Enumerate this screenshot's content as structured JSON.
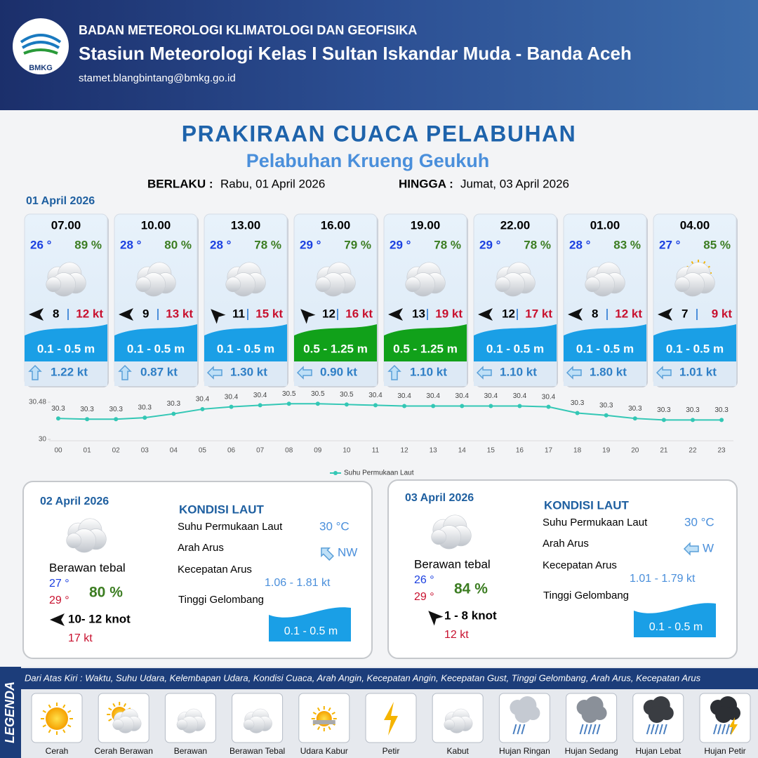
{
  "header": {
    "org": "BADAN METEOROLOGI KLIMATOLOGI DAN GEOFISIKA",
    "station": "Stasiun Meteorologi Kelas I Sultan Iskandar Muda - Banda Aceh",
    "email": "stamet.blangbintang@bmkg.go.id",
    "logo": "BMKG"
  },
  "title": "PRAKIRAAN CUACA PELABUHAN",
  "subtitle": "Pelabuhan Krueng Geukuh",
  "validity": {
    "from_label": "BERLAKU :",
    "from": "Rabu, 01 April 2026",
    "to_label": "HINGGA :",
    "to": "Jumat, 03 April 2026"
  },
  "day1": {
    "date": "01 April 2026",
    "cards": [
      {
        "time": "07.00",
        "temp": "26 °",
        "humidity": "89 %",
        "wind": "8",
        "gust": "12 kt",
        "wave": "0.1 - 0.5 m",
        "wave_color": "#1a9fe6",
        "current": "1.22 kt"
      },
      {
        "time": "10.00",
        "temp": "28 °",
        "humidity": "80 %",
        "wind": "9",
        "gust": "13 kt",
        "wave": "0.1 - 0.5 m",
        "wave_color": "#1a9fe6",
        "current": "0.87 kt"
      },
      {
        "time": "13.00",
        "temp": "28 °",
        "humidity": "78 %",
        "wind": "11",
        "gust": "15 kt",
        "wave": "0.1 - 0.5 m",
        "wave_color": "#1a9fe6",
        "current": "1.30 kt"
      },
      {
        "time": "16.00",
        "temp": "29 °",
        "humidity": "79 %",
        "wind": "12",
        "gust": "16 kt",
        "wave": "0.5 - 1.25 m",
        "wave_color": "#11a11a",
        "current": "0.90 kt"
      },
      {
        "time": "19.00",
        "temp": "29 °",
        "humidity": "78 %",
        "wind": "13",
        "gust": "19 kt",
        "wave": "0.5 - 1.25 m",
        "wave_color": "#11a11a",
        "current": "1.10 kt"
      },
      {
        "time": "22.00",
        "temp": "29 °",
        "humidity": "78 %",
        "wind": "12",
        "gust": "17 kt",
        "wave": "0.1 - 0.5 m",
        "wave_color": "#1a9fe6",
        "current": "1.10 kt"
      },
      {
        "time": "01.00",
        "temp": "28 °",
        "humidity": "83 %",
        "wind": "8",
        "gust": "12 kt",
        "wave": "0.1 - 0.5 m",
        "wave_color": "#1a9fe6",
        "current": "1.80 kt"
      },
      {
        "time": "04.00",
        "temp": "27 °",
        "humidity": "85 %",
        "wind": "7",
        "gust": "9 kt",
        "wave": "0.1 - 0.5 m",
        "wave_color": "#1a9fe6",
        "current": "1.01 kt"
      }
    ]
  },
  "chart_data": {
    "type": "line",
    "categories": [
      "00",
      "01",
      "02",
      "03",
      "04",
      "05",
      "06",
      "07",
      "08",
      "09",
      "10",
      "11",
      "12",
      "13",
      "14",
      "15",
      "16",
      "17",
      "18",
      "19",
      "20",
      "21",
      "22",
      "23"
    ],
    "series": [
      {
        "name": "Suhu Permukaan Laut",
        "color": "#33c7b5",
        "values": [
          30.27,
          30.26,
          30.26,
          30.28,
          30.33,
          30.39,
          30.42,
          30.44,
          30.46,
          30.46,
          30.45,
          30.44,
          30.43,
          30.43,
          30.43,
          30.43,
          30.43,
          30.42,
          30.34,
          30.31,
          30.27,
          30.25,
          30.25,
          30.25
        ],
        "value_labels": [
          "30.3",
          "30.3",
          "30.3",
          "30.3",
          "30.3",
          "30.4",
          "30.4",
          "30.4",
          "30.5",
          "30.5",
          "30.5",
          "30.4",
          "30.4",
          "30.4",
          "30.4",
          "30.4",
          "30.4",
          "30.4",
          "30.3",
          "30.3",
          "30.3",
          "30.3",
          "30.3",
          "30.3"
        ]
      }
    ],
    "ylim": [
      30,
      30.48
    ],
    "yticks": [
      30,
      30.48
    ],
    "legend": "bottom"
  },
  "days": [
    {
      "date": "02 April 2026",
      "weather": "Berawan tebal",
      "temp_a": "27 °",
      "temp_b": "29 °",
      "humidity": "80 %",
      "wind": "10- 12 knot",
      "gust": "17 kt",
      "sea": {
        "title": "KONDISI LAUT",
        "sst_label": "Suhu Permukaan Laut",
        "sst": "30 °C",
        "dir_label": "Arah Arus",
        "dir": "NW",
        "speed_label": "Kecepatan Arus",
        "speed": "1.06  - 1.81 kt",
        "wave_label": "Tinggi Gelombang",
        "wave": "0.1 - 0.5 m"
      }
    },
    {
      "date": "03 April 2026",
      "weather": "Berawan tebal",
      "temp_a": "26 °",
      "temp_b": "29 °",
      "humidity": "84 %",
      "wind": "1  - 8 knot",
      "gust": "12 kt",
      "sea": {
        "title": "KONDISI LAUT",
        "sst_label": "Suhu Permukaan Laut",
        "sst": "30 °C",
        "dir_label": "Arah Arus",
        "dir": "W",
        "speed_label": "Kecepatan Arus",
        "speed": "1.01 - 1.79 kt",
        "wave_label": "Tinggi Gelombang",
        "wave": "0.1 - 0.5 m"
      }
    }
  ],
  "legend": {
    "title": "LEGENDA",
    "description": "Dari Atas Kiri : Waktu, Suhu Udara, Kelembapan Udara, Kondisi Cuaca, Arah Angin, Kecepatan Angin, Kecepatan Gust, Tinggi Gelombang, Arah Arus, Kecepatan Arus",
    "items": [
      "Cerah",
      "Cerah Berawan",
      "Berawan",
      "Berawan Tebal",
      "Udara Kabur",
      "Petir",
      "Kabut",
      "Hujan Ringan",
      "Hujan Sedang",
      "Hujan Lebat",
      "Hujan Petir"
    ]
  }
}
